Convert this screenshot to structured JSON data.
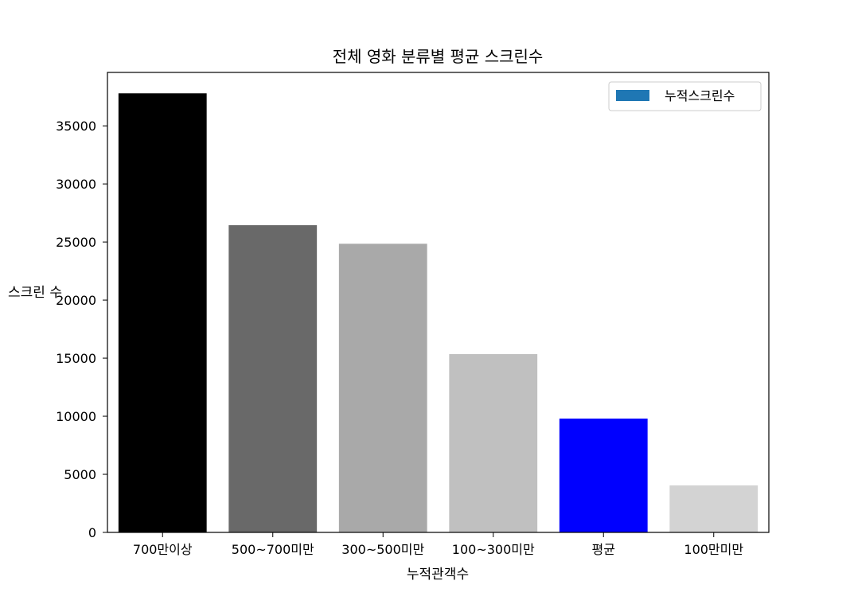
{
  "chart_data": {
    "type": "bar",
    "title": "전체 영화 분류별 평균 스크린수",
    "xlabel": "누적관객수",
    "ylabel": "스크린 수",
    "categories": [
      "700만이상",
      "500~700미만",
      "300~500미만",
      "100~300미만",
      "평균",
      "100만미만"
    ],
    "series": [
      {
        "name": "누적스크린수",
        "values": [
          37800,
          26450,
          24850,
          15350,
          9800,
          4050
        ],
        "colors": [
          "#000000",
          "#696969",
          "#a9a9a9",
          "#c0c0c0",
          "#0000ff",
          "#d3d3d3"
        ]
      }
    ],
    "legend_color": "#1f77b4",
    "ylim": [
      0,
      39600
    ],
    "yticks": [
      0,
      5000,
      10000,
      15000,
      20000,
      25000,
      30000,
      35000
    ],
    "legend_position": "top-right",
    "grid": false
  }
}
